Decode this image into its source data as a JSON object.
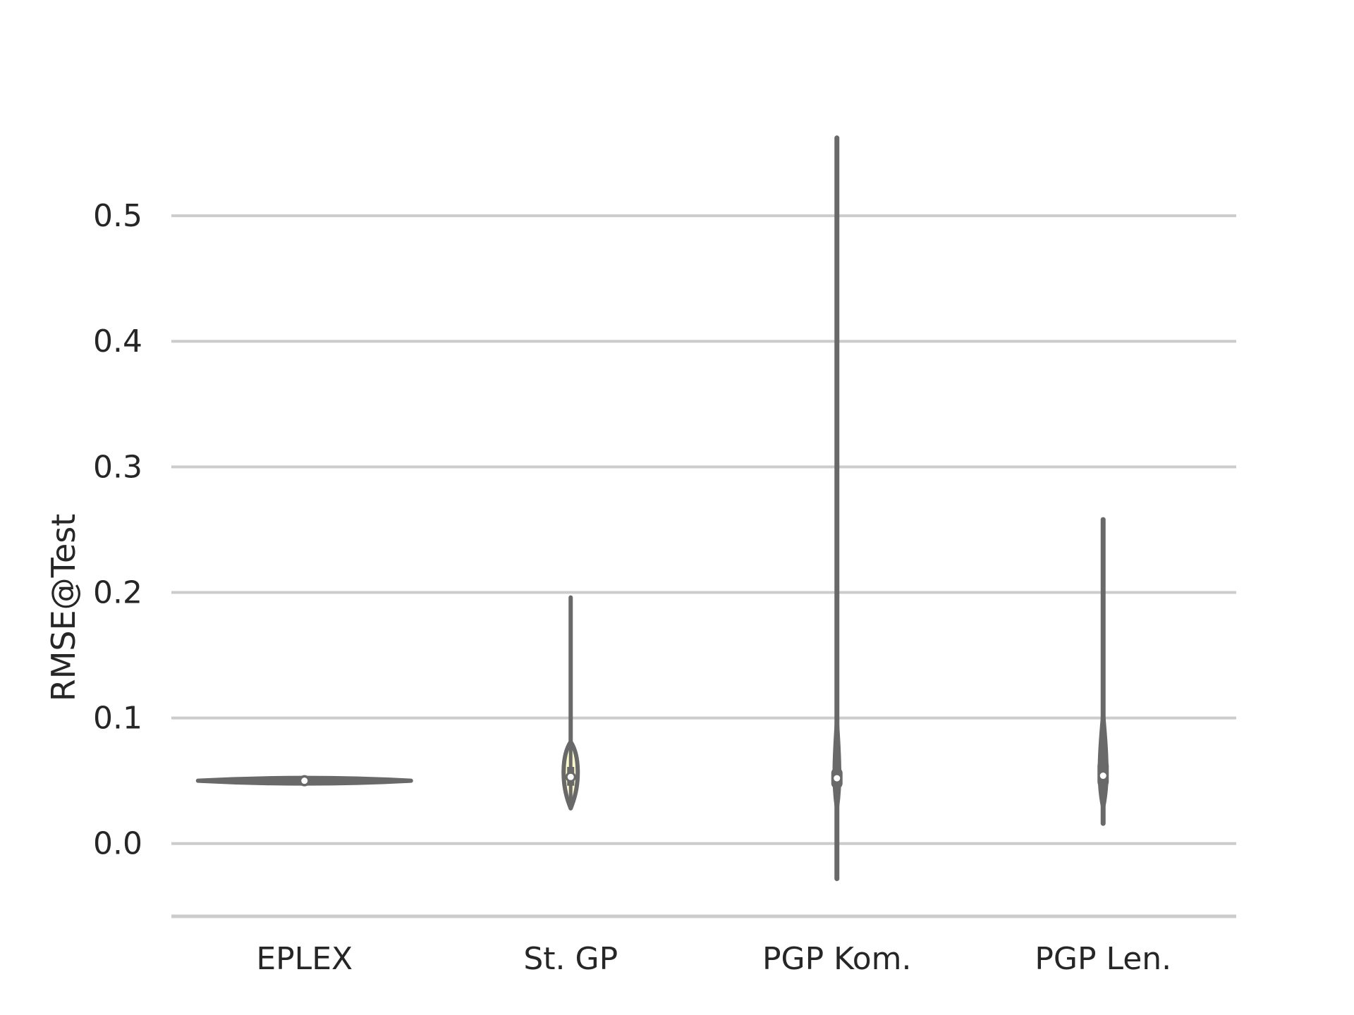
{
  "chart_data": {
    "type": "violin",
    "title": "",
    "xlabel": "",
    "ylabel": "RMSE@Test",
    "categories": [
      "EPLEX",
      "St. GP",
      "PGP Kom.",
      "PGP Len."
    ],
    "ylim": [
      -0.058,
      0.6
    ],
    "yticks": [
      0.0,
      0.1,
      0.2,
      0.3,
      0.4,
      0.5
    ],
    "ytick_labels": [
      "0.0",
      "0.1",
      "0.2",
      "0.3",
      "0.4",
      "0.5"
    ],
    "grid": "horizontal",
    "violins": [
      {
        "category": "EPLEX",
        "min": 0.048,
        "max": 0.052,
        "median": 0.05,
        "q1": 0.049,
        "q3": 0.051,
        "spread": "wide-flat"
      },
      {
        "category": "St. GP",
        "min": 0.028,
        "max": 0.196,
        "median": 0.053,
        "q1": 0.046,
        "q3": 0.061,
        "spread": "narrow"
      },
      {
        "category": "PGP Kom.",
        "min": -0.028,
        "max": 0.562,
        "median": 0.052,
        "q1": 0.048,
        "q3": 0.056,
        "spread": "thin"
      },
      {
        "category": "PGP Len.",
        "min": 0.016,
        "max": 0.258,
        "median": 0.054,
        "q1": 0.049,
        "q3": 0.062,
        "spread": "thin"
      }
    ],
    "colors": {
      "violin": "#696969",
      "fill": "#fdfccc",
      "grid": "#cccccc",
      "text": "#262626",
      "median": "#ffffff"
    }
  }
}
